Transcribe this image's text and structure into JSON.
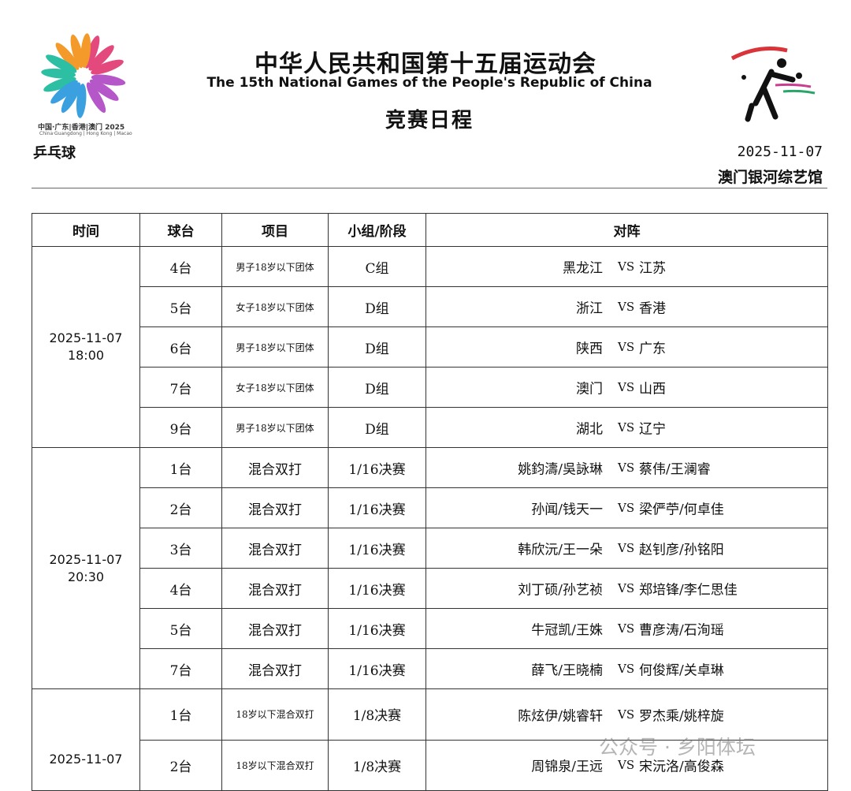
{
  "header": {
    "title_cn": "中华人民共和国第十五届运动会",
    "title_en": "The 15th National Games of the People's Republic of China",
    "subtitle": "竞赛日程",
    "sport": "乒乓球",
    "date": "2025-11-07",
    "venue": "澳门银河综艺馆",
    "logo_cn": "中国·广东|香港|澳门 2025",
    "logo_en": "China·Guangdong | Hong Kong | Macao"
  },
  "table": {
    "columns": [
      "时间",
      "球台",
      "项目",
      "小组/阶段",
      "对阵"
    ],
    "groups": [
      {
        "date": "2025-11-07",
        "time": "18:00",
        "rows": [
          {
            "table": "4台",
            "event": "男子18岁以下团体",
            "stage": "C组",
            "side_a": "黑龙江",
            "vs": "VS",
            "side_b": "江苏"
          },
          {
            "table": "5台",
            "event": "女子18岁以下团体",
            "stage": "D组",
            "side_a": "浙江",
            "vs": "VS",
            "side_b": "香港"
          },
          {
            "table": "6台",
            "event": "男子18岁以下团体",
            "stage": "D组",
            "side_a": "陕西",
            "vs": "VS",
            "side_b": "广东"
          },
          {
            "table": "7台",
            "event": "女子18岁以下团体",
            "stage": "D组",
            "side_a": "澳门",
            "vs": "VS",
            "side_b": "山西"
          },
          {
            "table": "9台",
            "event": "男子18岁以下团体",
            "stage": "D组",
            "side_a": "湖北",
            "vs": "VS",
            "side_b": "辽宁"
          }
        ]
      },
      {
        "date": "2025-11-07",
        "time": "20:30",
        "rows": [
          {
            "table": "1台",
            "event": "混合双打",
            "stage": "1/16决赛",
            "side_a": "姚鈞濤/吳詠琳",
            "vs": "VS",
            "side_b": "蔡伟/王澜睿"
          },
          {
            "table": "2台",
            "event": "混合双打",
            "stage": "1/16决赛",
            "side_a": "孙闻/钱天一",
            "vs": "VS",
            "side_b": "梁俨苧/何卓佳"
          },
          {
            "table": "3台",
            "event": "混合双打",
            "stage": "1/16决赛",
            "side_a": "韩欣沅/王一朵",
            "vs": "VS",
            "side_b": "赵钊彦/孙铭阳"
          },
          {
            "table": "4台",
            "event": "混合双打",
            "stage": "1/16决赛",
            "side_a": "刘丁硕/孙艺祯",
            "vs": "VS",
            "side_b": "郑培锋/李仁思佳"
          },
          {
            "table": "5台",
            "event": "混合双打",
            "stage": "1/16决赛",
            "side_a": "牛冠凯/王姝",
            "vs": "VS",
            "side_b": "曹彦涛/石洵瑶"
          },
          {
            "table": "7台",
            "event": "混合双打",
            "stage": "1/16决赛",
            "side_a": "薛飞/王晓楠",
            "vs": "VS",
            "side_b": "何俊辉/关卓琳"
          }
        ]
      },
      {
        "date": "2025-11-07",
        "rows": [
          {
            "table": "1台",
            "event": "18岁以下混合双打",
            "stage": "1/8决赛",
            "side_a": "陈炫伊/姚睿轩",
            "vs": "VS",
            "side_b": "罗杰乘/姚梓旋"
          },
          {
            "table": "2台",
            "event": "18岁以下混合双打",
            "stage": "1/8决赛",
            "side_a": "周锦泉/王远",
            "vs": "VS",
            "side_b": "宋沅洛/高俊森"
          }
        ]
      }
    ]
  },
  "watermark": "公众号 · 乡阳体坛"
}
